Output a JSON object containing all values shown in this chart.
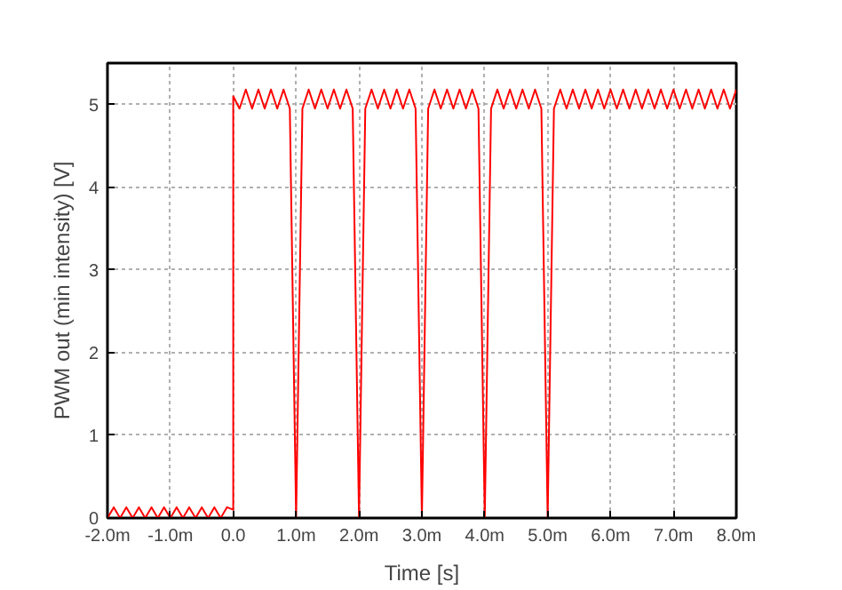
{
  "chart_data": {
    "type": "line",
    "xlabel": "Time [s]",
    "ylabel": "PWM out (min intensity) [V]",
    "xlim": [
      -2,
      8
    ],
    "ylim": [
      0,
      5.5
    ],
    "xticks": [
      {
        "value": -2,
        "label": "-2.0m"
      },
      {
        "value": -1,
        "label": "-1.0m"
      },
      {
        "value": 0,
        "label": "0.0"
      },
      {
        "value": 1,
        "label": "1.0m"
      },
      {
        "value": 2,
        "label": "2.0m"
      },
      {
        "value": 3,
        "label": "3.0m"
      },
      {
        "value": 4,
        "label": "4.0m"
      },
      {
        "value": 5,
        "label": "5.0m"
      },
      {
        "value": 6,
        "label": "6.0m"
      },
      {
        "value": 7,
        "label": "7.0m"
      },
      {
        "value": 8,
        "label": "8.0m"
      }
    ],
    "yticks": [
      0,
      1,
      2,
      3,
      4,
      5
    ],
    "grid": true,
    "line_style": "solid",
    "series": [
      {
        "color": "#ff0000",
        "x": [
          -2,
          -1.9,
          -1.8,
          -1.7,
          -1.6,
          -1.5,
          -1.4,
          -1.3,
          -1.2,
          -1.1,
          -1,
          -0.9,
          -0.8,
          -0.7,
          -0.6,
          -0.5,
          -0.4,
          -0.3,
          -0.2,
          -0.1,
          0,
          0,
          0.1,
          0.2,
          0.3,
          0.4,
          0.5,
          0.6,
          0.7,
          0.8,
          0.9,
          1,
          1.1,
          1.2,
          1.3,
          1.4,
          1.5,
          1.6,
          1.7,
          1.8,
          1.9,
          2,
          2.1,
          2.2,
          2.3,
          2.4,
          2.5,
          2.6,
          2.7,
          2.8,
          2.9,
          3,
          3.1,
          3.2,
          3.3,
          3.4,
          3.5,
          3.6,
          3.7,
          3.8,
          3.9,
          4,
          4.1,
          4.2,
          4.3,
          4.4,
          4.5,
          4.6,
          4.7,
          4.8,
          4.9,
          5,
          5.1,
          5.2,
          5.3,
          5.4,
          5.5,
          5.6,
          5.7,
          5.8,
          5.9,
          6,
          6.1,
          6.2,
          6.3,
          6.4,
          6.5,
          6.6,
          6.7,
          6.8,
          6.9,
          7,
          7.1,
          7.2,
          7.3,
          7.4,
          7.5,
          7.6,
          7.7,
          7.8,
          7.9,
          8
        ],
        "values": [
          0,
          0.13,
          0,
          0.13,
          0,
          0.13,
          0,
          0.13,
          0,
          0.13,
          0,
          0.13,
          0,
          0.13,
          0,
          0.13,
          0,
          0.13,
          0,
          0.13,
          0.1,
          5.1,
          4.95,
          5.18,
          4.95,
          5.18,
          4.95,
          5.18,
          4.95,
          5.18,
          4.95,
          0,
          4.95,
          5.18,
          4.95,
          5.18,
          4.95,
          5.18,
          4.95,
          5.18,
          4.95,
          0,
          4.95,
          5.18,
          4.95,
          5.18,
          4.95,
          5.18,
          4.95,
          5.18,
          4.95,
          0,
          4.95,
          5.18,
          4.95,
          5.18,
          4.95,
          5.18,
          4.95,
          5.18,
          4.95,
          0,
          4.95,
          5.18,
          4.95,
          5.18,
          4.95,
          5.18,
          4.95,
          5.18,
          4.95,
          0,
          4.95,
          5.18,
          4.95,
          5.18,
          4.95,
          5.18,
          4.95,
          5.18,
          4.95,
          5.18,
          4.95,
          5.18,
          4.95,
          5.18,
          4.95,
          5.18,
          4.95,
          5.18,
          4.95,
          5.18,
          4.95,
          5.18,
          4.95,
          5.18,
          4.95,
          5.18,
          4.95,
          5.18,
          4.95,
          5.18
        ]
      }
    ]
  }
}
